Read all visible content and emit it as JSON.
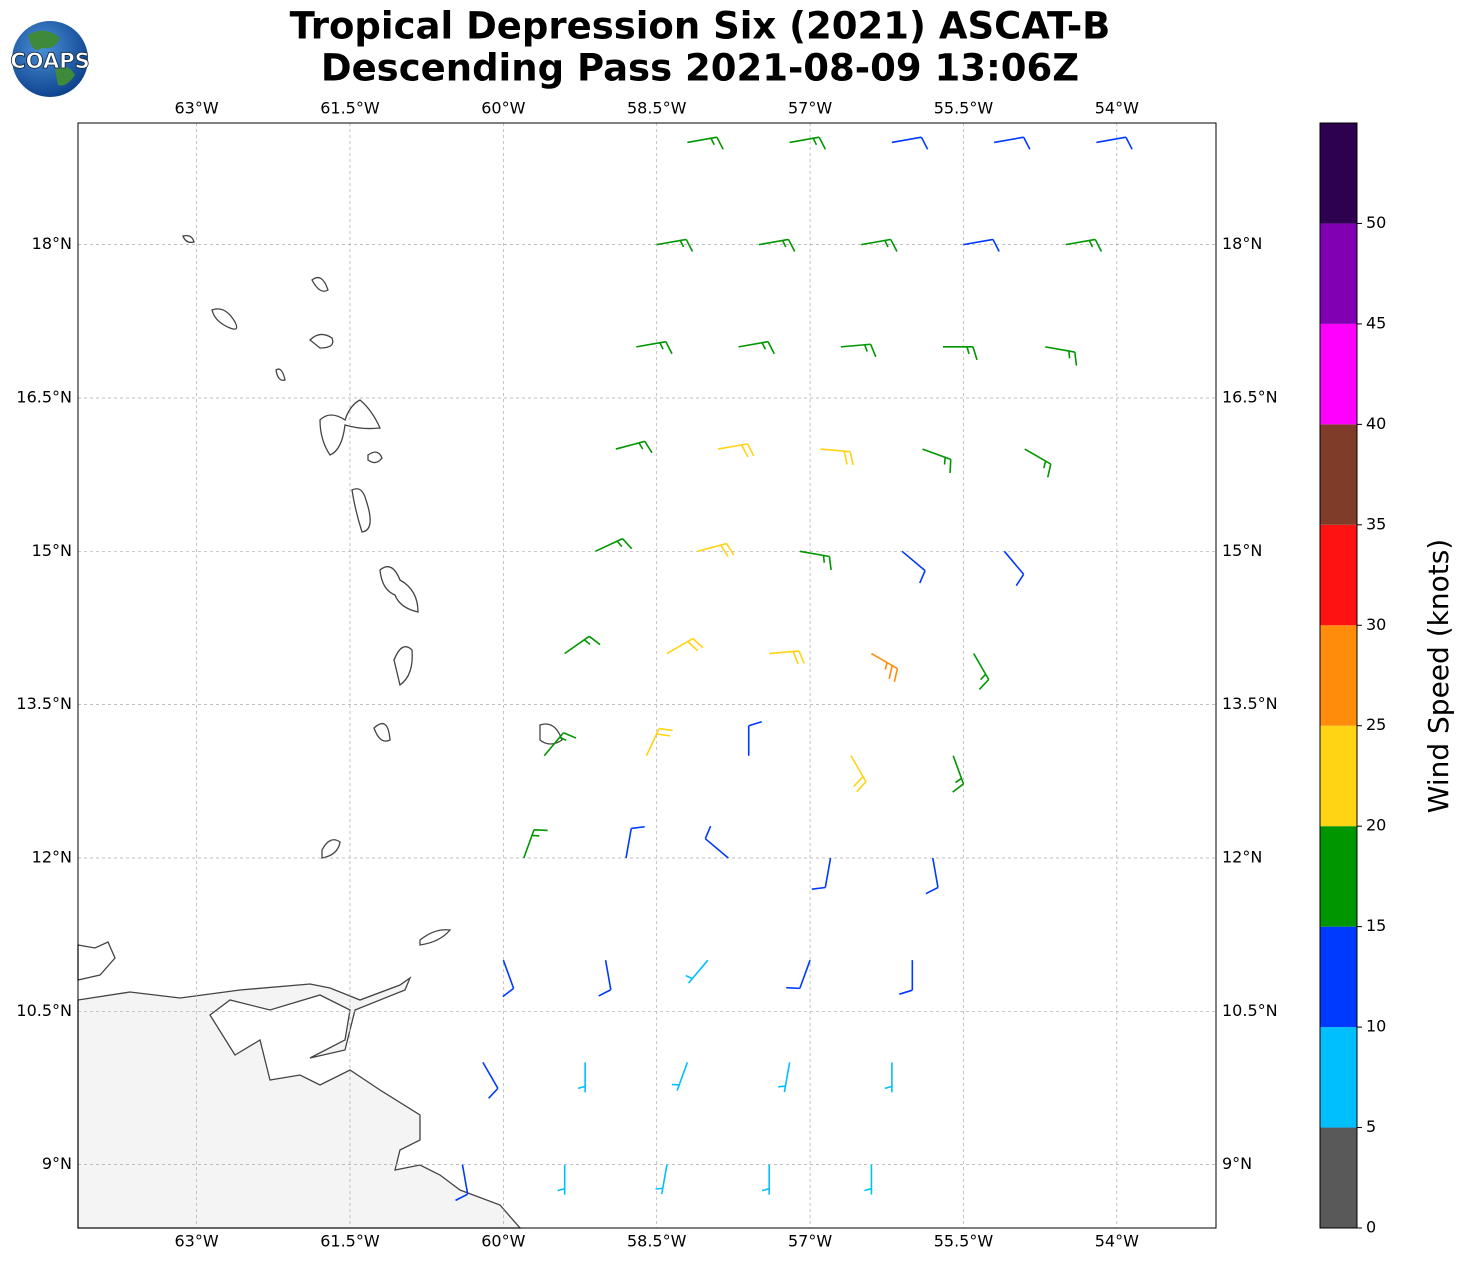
{
  "chart_data": {
    "type": "wind-barb-map",
    "title": "Tropical Depression Six (2021) ASCAT-B",
    "subtitle": "Descending Pass 2021-08-09 13:06Z",
    "logo": "COAPS",
    "xlim": [
      -64.16,
      -53.03
    ],
    "ylim": [
      8.38,
      19.19
    ],
    "xticks": [
      {
        "value": -63,
        "label": "63°W"
      },
      {
        "value": -61.5,
        "label": "61.5°W"
      },
      {
        "value": -60,
        "label": "60°W"
      },
      {
        "value": -58.5,
        "label": "58.5°W"
      },
      {
        "value": -57,
        "label": "57°W"
      },
      {
        "value": -55.5,
        "label": "55.5°W"
      },
      {
        "value": -54,
        "label": "54°W"
      }
    ],
    "yticks": [
      {
        "value": 9,
        "label": "9°N"
      },
      {
        "value": 10.5,
        "label": "10.5°N"
      },
      {
        "value": 12,
        "label": "12°N"
      },
      {
        "value": 13.5,
        "label": "13.5°N"
      },
      {
        "value": 15,
        "label": "15°N"
      },
      {
        "value": 16.5,
        "label": "16.5°N"
      },
      {
        "value": 18,
        "label": "18°N"
      }
    ],
    "grid": true,
    "colorbar": {
      "label": "Wind Speed (knots)",
      "lim": [
        0,
        55
      ],
      "bounds": [
        0,
        5,
        10,
        15,
        20,
        25,
        30,
        35,
        40,
        45,
        50,
        55
      ],
      "colors": [
        "#595959",
        "#00bfff",
        "#0039ff",
        "#009600",
        "#ffd414",
        "#ff8c0a",
        "#ff1212",
        "#7f3c28",
        "#ff00ff",
        "#8200b4",
        "#2d0050"
      ],
      "ticks": [
        0,
        5,
        10,
        15,
        20,
        25,
        30,
        35,
        40,
        45,
        50
      ]
    },
    "barbs": {
      "lon": [
        -58.2,
        -57.2,
        -56.2,
        -55.2,
        -54.2,
        -58.5,
        -57.5,
        -56.5,
        -55.5,
        -54.5,
        -58.7,
        -57.7,
        -56.7,
        -55.7,
        -54.7,
        -58.9,
        -57.9,
        -56.9,
        -55.9,
        -54.9,
        -59.1,
        -58.1,
        -57.1,
        -56.1,
        -55.1,
        -59.4,
        -58.4,
        -57.4,
        -56.4,
        -55.4,
        -59.6,
        -58.6,
        -57.6,
        -56.6,
        -55.6,
        -59.8,
        -58.8,
        -57.8,
        -56.8,
        -55.8,
        -60.0,
        -59.0,
        -58.0,
        -57.0,
        -56.0,
        -60.2,
        -59.2,
        -58.2,
        -57.2,
        -56.2,
        -60.4,
        -59.4,
        -58.4,
        -57.4,
        -56.4
      ],
      "lat": [
        19,
        19,
        19,
        19,
        19,
        18,
        18,
        18,
        18,
        18,
        17,
        17,
        17,
        17,
        17,
        16,
        16,
        16,
        16,
        16,
        15,
        15,
        15,
        15,
        15,
        14,
        14,
        14,
        14,
        14,
        13,
        13,
        13,
        13,
        13,
        12,
        12,
        12,
        12,
        12,
        11,
        11,
        11,
        11,
        11,
        10,
        10,
        10,
        10,
        10,
        9,
        9,
        9,
        9,
        9
      ],
      "speed": [
        17,
        17,
        13,
        12,
        12,
        17,
        17,
        16,
        13,
        16,
        17,
        17,
        17,
        17,
        16,
        17,
        21,
        21,
        17,
        17,
        17,
        21,
        18,
        13,
        13,
        17,
        22,
        22,
        27,
        17,
        17,
        22,
        13,
        23,
        17,
        17,
        14,
        12,
        13,
        13,
        12,
        12,
        8,
        12,
        12,
        12,
        8,
        6,
        8,
        8,
        10,
        8,
        7,
        9,
        9
      ],
      "direction": [
        80,
        80,
        80,
        80,
        80,
        80,
        80,
        80,
        80,
        80,
        80,
        80,
        85,
        90,
        100,
        75,
        80,
        95,
        110,
        120,
        65,
        75,
        100,
        130,
        140,
        55,
        60,
        85,
        120,
        150,
        40,
        25,
        0,
        150,
        160,
        20,
        10,
        310,
        190,
        170,
        160,
        170,
        220,
        200,
        180,
        150,
        180,
        200,
        190,
        180,
        170,
        180,
        190,
        180,
        180
      ]
    }
  }
}
